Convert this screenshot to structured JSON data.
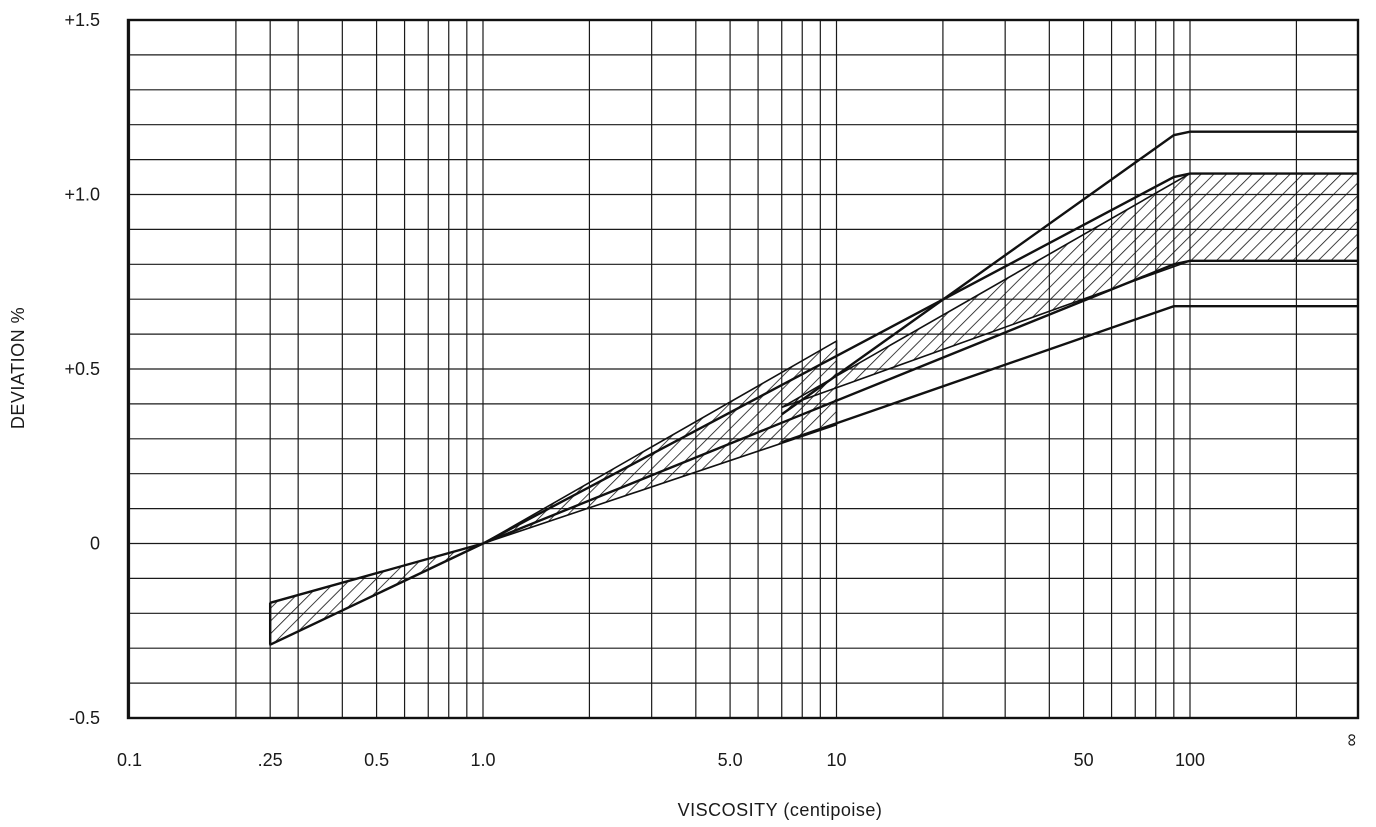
{
  "chart_data": {
    "type": "line",
    "title": "",
    "xlabel": "VISCOSITY (centipoise)",
    "ylabel": "DEVIATION %",
    "x_scale": "log",
    "xlim": [
      0.1,
      "∞"
    ],
    "ylim": [
      -0.5,
      1.5
    ],
    "grid": true,
    "x_tick_labels": [
      "0.1",
      ".25",
      "0.5",
      "1.0",
      "5.0",
      "10",
      "50",
      "100",
      "∞"
    ],
    "x_tick_values": [
      0.1,
      0.25,
      0.5,
      1.0,
      5.0,
      10,
      50,
      100,
      "∞"
    ],
    "y_tick_labels": [
      "+1.5",
      "+1.0",
      "+0.5",
      "0",
      "-0.5"
    ],
    "y_tick_values": [
      1.5,
      1.0,
      0.5,
      0,
      -0.5
    ],
    "series": [
      {
        "x": [
          7,
          90,
          100,
          "∞"
        ],
        "y": [
          0.37,
          1.17,
          1.18,
          1.18
        ]
      },
      {
        "x": [
          0.25,
          1.0,
          90,
          100,
          "∞"
        ],
        "y": [
          -0.17,
          0.0,
          1.05,
          1.06,
          1.06
        ]
      },
      {
        "x": [
          0.25,
          1.0,
          90,
          100,
          "∞"
        ],
        "y": [
          -0.29,
          0.0,
          0.8,
          0.81,
          0.81
        ]
      },
      {
        "x": [
          7,
          90,
          100,
          "∞"
        ],
        "y": [
          0.29,
          0.68,
          0.68,
          0.68
        ]
      }
    ],
    "shaded_bands": [
      {
        "x": [
          0.25,
          1.0
        ],
        "upper": [
          -0.17,
          0.0
        ],
        "lower": [
          -0.29,
          0.0
        ]
      },
      {
        "x": [
          1.0,
          10
        ],
        "upper": [
          0.0,
          0.58
        ],
        "lower": [
          0.0,
          0.34
        ]
      },
      {
        "x": [
          7,
          100,
          "∞"
        ],
        "upper": [
          0.39,
          1.06,
          1.06
        ],
        "lower": [
          0.39,
          0.81,
          0.81
        ]
      }
    ]
  }
}
